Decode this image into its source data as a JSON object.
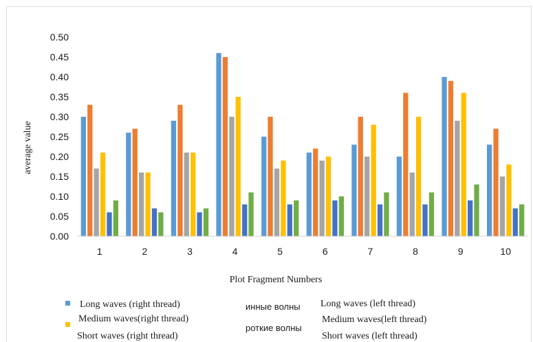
{
  "chart_data": {
    "type": "bar",
    "categories": [
      "1",
      "2",
      "3",
      "4",
      "5",
      "6",
      "7",
      "8",
      "9",
      "10"
    ],
    "xlabel": "Plot Fragment Numbers",
    "ylabel": "average value",
    "ylim": [
      0,
      0.5
    ],
    "yticks": [
      "0.00",
      "0.05",
      "0.10",
      "0.15",
      "0.20",
      "0.25",
      "0.30",
      "0.35",
      "0.40",
      "0.45",
      "0.50"
    ],
    "grid": false,
    "legend_position": "bottom",
    "series": [
      {
        "name": "Long waves (right thread)",
        "color": "#5b9bd5",
        "values": [
          0.3,
          0.26,
          0.29,
          0.46,
          0.25,
          0.21,
          0.23,
          0.2,
          0.4,
          0.23
        ]
      },
      {
        "name": "Medium waves(right thread)",
        "color": "#ed7d31",
        "values": [
          0.33,
          0.27,
          0.33,
          0.45,
          0.3,
          0.22,
          0.3,
          0.36,
          0.39,
          0.27
        ]
      },
      {
        "name": "Short waves (right thread)",
        "color": "#a5a5a5",
        "values": [
          0.17,
          0.16,
          0.21,
          0.3,
          0.17,
          0.19,
          0.2,
          0.16,
          0.29,
          0.15
        ]
      },
      {
        "name": "Long waves (left thread)",
        "color": "#ffc000",
        "values": [
          0.21,
          0.16,
          0.21,
          0.35,
          0.19,
          0.2,
          0.28,
          0.3,
          0.36,
          0.18
        ]
      },
      {
        "name": "Medium waves(left thread)",
        "color": "#4472c4",
        "values": [
          0.06,
          0.07,
          0.06,
          0.08,
          0.08,
          0.09,
          0.08,
          0.08,
          0.09,
          0.07
        ]
      },
      {
        "name": "Short waves (left thread)",
        "color": "#70ad47",
        "values": [
          0.09,
          0.06,
          0.07,
          0.11,
          0.09,
          0.1,
          0.11,
          0.11,
          0.13,
          0.08
        ]
      }
    ],
    "legend_overlap_fragments": [
      "инные волны",
      "роткие волны"
    ]
  }
}
